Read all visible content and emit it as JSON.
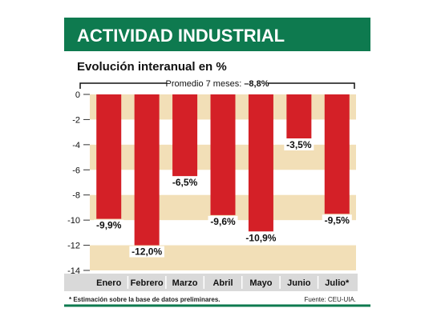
{
  "header": {
    "title": "ACTIVIDAD INDUSTRIAL",
    "subtitle": "Evolución interanual en %"
  },
  "average": {
    "label": "Promedio 7 meses: ",
    "value": "–8,8%"
  },
  "footer": {
    "note": "* Estimación sobre la base de datos preliminares.",
    "source": "Fuente: CEU-UIA."
  },
  "colors": {
    "title_bg": "#0e7a4f",
    "bar": "#d42027",
    "band": "#f2dfb7",
    "category_bg": "#d9d9d9",
    "rule": "#0e7a4f"
  },
  "chart_data": {
    "type": "bar",
    "categories": [
      "Enero",
      "Febrero",
      "Marzo",
      "Abril",
      "Mayo",
      "Junio",
      "Julio*"
    ],
    "values": [
      -9.9,
      -12.0,
      -6.5,
      -9.6,
      -10.9,
      -3.5,
      -9.5
    ],
    "value_labels": [
      "-9,9%",
      "-12,0%",
      "-6,5%",
      "-9,6%",
      "-10,9%",
      "-3,5%",
      "-9,5%"
    ],
    "y_ticks": [
      "0",
      "-2",
      "-4",
      "-6",
      "-8",
      "-10",
      "-12",
      "-14"
    ],
    "ylim": [
      -14,
      0
    ],
    "grid": false
  }
}
